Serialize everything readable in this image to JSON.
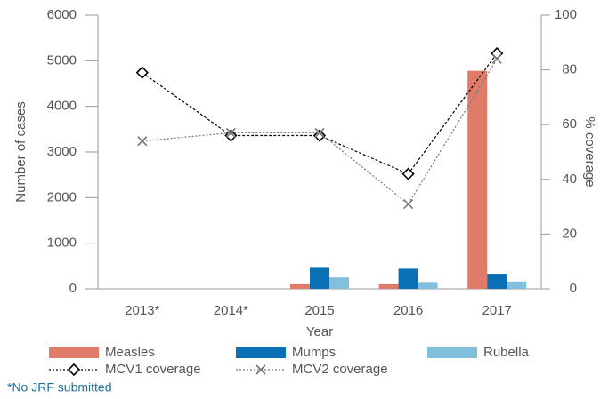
{
  "chart_data": {
    "type": "bar_line",
    "categories": [
      "2013*",
      "2014*",
      "2015",
      "2016",
      "2017"
    ],
    "x_label": "Year",
    "y_label": "Number of cases",
    "y2_label": "% coverage",
    "ylim": [
      0,
      6000
    ],
    "yticks": [
      0,
      1000,
      2000,
      3000,
      4000,
      5000,
      6000
    ],
    "y2lim": [
      0,
      100
    ],
    "y2ticks": [
      0,
      20,
      40,
      60,
      80,
      100
    ],
    "series": [
      {
        "name": "Measles",
        "type": "bar",
        "color": "#e07b6a",
        "values": [
          null,
          null,
          100,
          100,
          4780
        ]
      },
      {
        "name": "Mumps",
        "type": "bar",
        "color": "#0a6fb5",
        "values": [
          null,
          null,
          460,
          440,
          330
        ]
      },
      {
        "name": "Rubella",
        "type": "bar",
        "color": "#80c0dc",
        "values": [
          null,
          null,
          250,
          150,
          160
        ]
      },
      {
        "name": "MCV1 coverage",
        "type": "line",
        "marker": "diamond",
        "axis": "y2",
        "color": "#000000",
        "values": [
          79,
          56,
          56,
          42,
          86
        ]
      },
      {
        "name": "MCV2 coverage",
        "type": "line",
        "marker": "x",
        "axis": "y2",
        "color": "#777777",
        "values": [
          54,
          57,
          57,
          31,
          84
        ]
      }
    ],
    "footnote": "*No JRF submitted"
  }
}
